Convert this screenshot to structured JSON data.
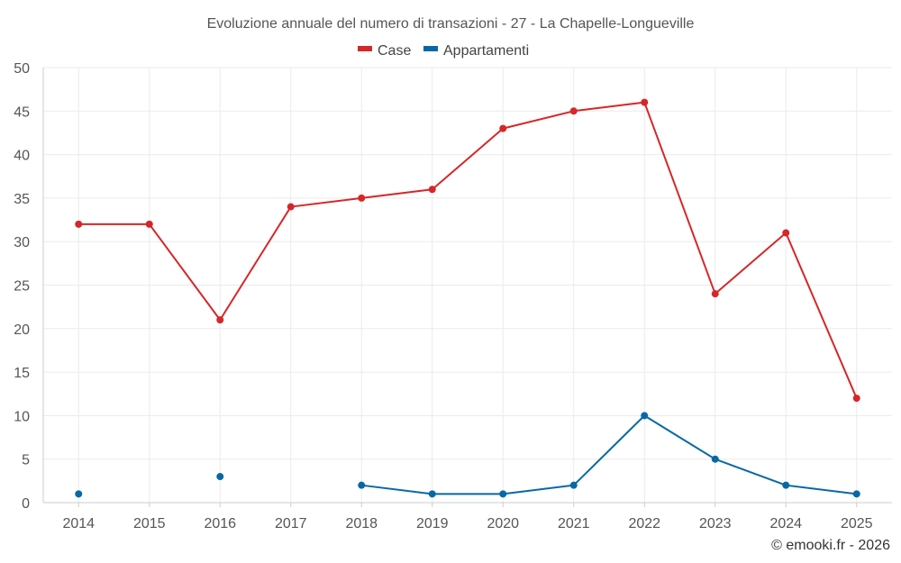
{
  "chart_data": {
    "type": "line",
    "title": "Evoluzione annuale del numero di transazioni - 27 - La Chapelle-Longueville",
    "categories": [
      "2014",
      "2015",
      "2016",
      "2017",
      "2018",
      "2019",
      "2020",
      "2021",
      "2022",
      "2023",
      "2024",
      "2025"
    ],
    "series": [
      {
        "name": "Case",
        "color": "#d62728",
        "values": [
          32,
          32,
          21,
          34,
          35,
          36,
          43,
          45,
          46,
          24,
          31,
          12
        ]
      },
      {
        "name": "Appartamenti",
        "color": "#0868a6",
        "values": [
          1,
          null,
          3,
          null,
          2,
          1,
          1,
          2,
          10,
          5,
          2,
          1
        ]
      }
    ],
    "ylim": [
      0,
      50
    ],
    "yticks": [
      "0",
      "5",
      "10",
      "15",
      "20",
      "25",
      "30",
      "35",
      "40",
      "45",
      "50"
    ],
    "legend_position": "top-center",
    "grid": true,
    "credit": "© emooki.fr - 2026"
  }
}
